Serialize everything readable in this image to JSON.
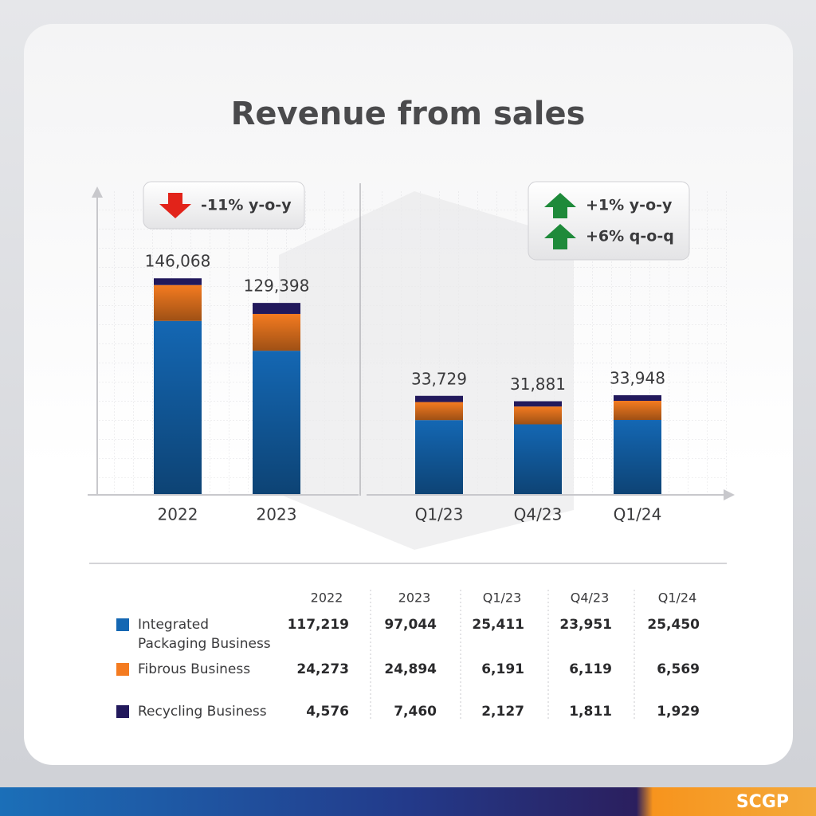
{
  "title": "Revenue from sales",
  "chart_data": [
    {
      "type": "bar",
      "stacked": true,
      "categories": [
        "2022",
        "2023"
      ],
      "series": [
        {
          "name": "Integrated Packaging Business",
          "color": "#1467b3",
          "values": [
            117219,
            97044
          ]
        },
        {
          "name": "Fibrous Business",
          "color": "#f47b20",
          "values": [
            24273,
            24894
          ]
        },
        {
          "name": "Recycling Business",
          "color": "#22195c",
          "values": [
            4576,
            7460
          ]
        }
      ],
      "total_labels": [
        "146,068",
        "129,398"
      ],
      "ylim": [
        0,
        205000
      ],
      "badges": [
        {
          "text": "-11% y-o-y",
          "direction": "down"
        }
      ]
    },
    {
      "type": "bar",
      "stacked": true,
      "categories": [
        "Q1/23",
        "Q4/23",
        "Q1/24"
      ],
      "series": [
        {
          "name": "Integrated Packaging Business",
          "color": "#1467b3",
          "values": [
            25411,
            23951,
            25450
          ]
        },
        {
          "name": "Fibrous Business",
          "color": "#f47b20",
          "values": [
            6191,
            6119,
            6569
          ]
        },
        {
          "name": "Recycling Business",
          "color": "#22195c",
          "values": [
            2127,
            1811,
            1929
          ]
        }
      ],
      "total_labels": [
        "33,729",
        "31,881",
        "33,948"
      ],
      "ylim": [
        0,
        104000
      ],
      "badges": [
        {
          "text": "+1% y-o-y",
          "direction": "up"
        },
        {
          "text": "+6% q-o-q",
          "direction": "up"
        }
      ]
    }
  ],
  "table": {
    "rows": [
      [
        "117,219",
        "97,044",
        "25,411",
        "23,951",
        "25,450"
      ],
      [
        "24,273",
        "24,894",
        "6,191",
        "6,119",
        "6,569"
      ],
      [
        "4,576",
        "7,460",
        "2,127",
        "1,811",
        "1,929"
      ]
    ]
  },
  "footer": "SCGP"
}
